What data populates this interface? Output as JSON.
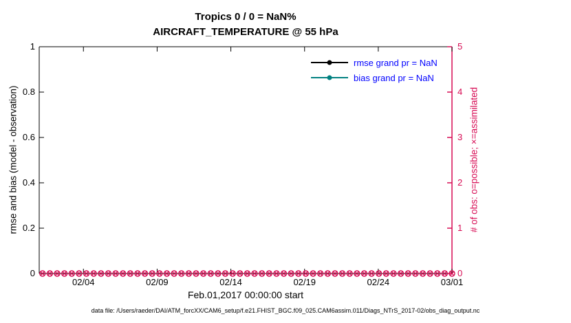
{
  "figure": {
    "title_line1": "Tropics 0 / 0 = NaN%",
    "title_line2": "AIRCRAFT_TEMPERATURE @ 55 hPa",
    "caption": "data file: /Users/raeder/DAI/ATM_forcXX/CAM6_setup/f.e21.FHIST_BGC.f09_025.CAM6assim.011/Diags_NTrS_2017-02/obs_diag_output.nc"
  },
  "legend": {
    "text_color": "#0000ff",
    "entries": [
      {
        "label": "rmse grand pr = NaN",
        "line_color": "#000000"
      },
      {
        "label": "bias grand pr = NaN",
        "line_color": "#008080"
      }
    ]
  },
  "chart_data": {
    "type": "line",
    "title": "Tropics 0 / 0 = NaN% — AIRCRAFT_TEMPERATURE @ 55 hPa",
    "x_axis": {
      "label": "Feb.01,2017 00:00:00 start",
      "ticks": [
        {
          "label": "02/04",
          "f": 0.1071
        },
        {
          "label": "02/09",
          "f": 0.2857
        },
        {
          "label": "02/14",
          "f": 0.4643
        },
        {
          "label": "02/19",
          "f": 0.6429
        },
        {
          "label": "02/24",
          "f": 0.8214
        },
        {
          "label": "03/01",
          "f": 1.0
        }
      ]
    },
    "left_axis": {
      "label": "rmse and bias (model - observation)",
      "ticks": [
        "0",
        "0.2",
        "0.4",
        "0.6",
        "0.8",
        "1"
      ],
      "range": [
        0,
        1
      ],
      "color": "#000000"
    },
    "right_axis": {
      "label": "# of obs: o=possible; ×=assimilated",
      "ticks": [
        "0",
        "1",
        "2",
        "3",
        "4",
        "5"
      ],
      "range": [
        0,
        5
      ],
      "color": "#d70a53"
    },
    "grid": false,
    "legend_position": "top-right-inside",
    "series": [
      {
        "name": "rmse",
        "legend": "rmse grand pr = NaN",
        "color": "#000000",
        "axis": "left",
        "values": "NaN (no line drawn)"
      },
      {
        "name": "bias",
        "legend": "bias grand pr = NaN",
        "color": "#008080",
        "axis": "left",
        "values": "NaN (no line drawn)"
      },
      {
        "name": "possible-obs",
        "marker": "o",
        "color": "#d70a53",
        "axis": "right",
        "constant_value": 0,
        "n_points": 57,
        "f_start": 0.008,
        "f_end": 1.0
      },
      {
        "name": "assimilated-obs",
        "marker": "×",
        "color": "#d70a53",
        "axis": "right",
        "constant_value": 0,
        "n_points": 57,
        "f_start": 0.008,
        "f_end": 1.0
      }
    ]
  }
}
